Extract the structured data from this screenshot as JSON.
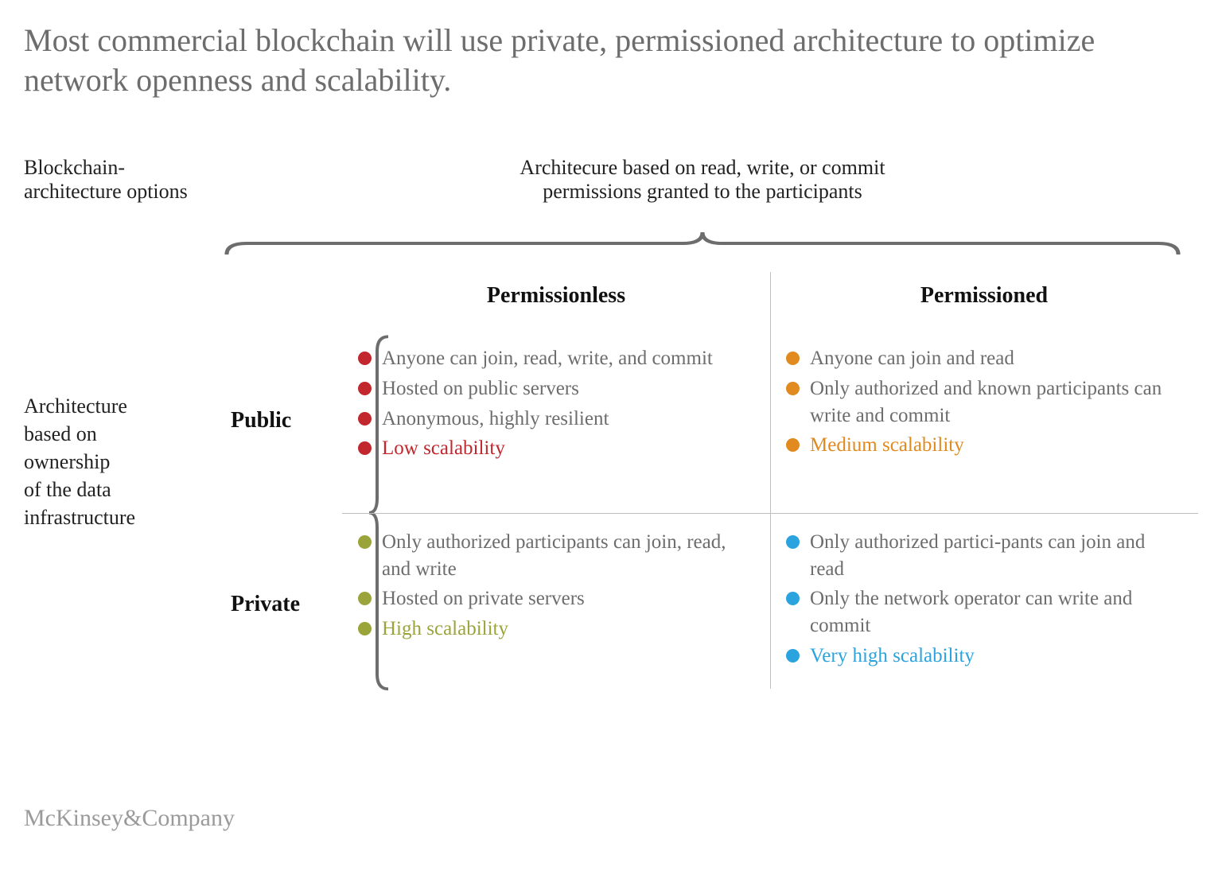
{
  "colors": {
    "title_text": "#6d6d6d",
    "body_text": "#6d6d6d",
    "heading_text": "#111111",
    "divider": "#bfbfbf",
    "brace": "#6d6d6d",
    "background": "#ffffff",
    "red": "#c1272d",
    "orange": "#e08a1f",
    "olive": "#9ba43a",
    "blue": "#2ba3df"
  },
  "typography": {
    "title_fontsize": 40,
    "subtitle_fontsize": 26,
    "colhead_fontsize": 28,
    "bullet_fontsize": 25,
    "attribution_fontsize": 30,
    "font_family": "Georgia, serif"
  },
  "title": "Most commercial blockchain will use private, permissioned architecture to optimize network openness and scalability.",
  "left_subtitle_l1": "Blockchain-",
  "left_subtitle_l2": "architecture options",
  "top_subtitle_l1": "Architecure based on read, write, or commit",
  "top_subtitle_l2": "permissions granted to the participants",
  "left_axis_l1": "Architecture",
  "left_axis_l2": "based on",
  "left_axis_l3": "ownership",
  "left_axis_l4": "of the data",
  "left_axis_l5": "infrastructure",
  "col1": "Permissionless",
  "col2": "Permissioned",
  "row1": "Public",
  "row2": "Private",
  "quadrants": {
    "public_permissionless": {
      "bullet_color": "#c1272d",
      "items": [
        "Anyone can join, read, write, and commit",
        "Hosted on public servers",
        "Anonymous, highly resilient"
      ],
      "scalability_label": "Low scalability",
      "scalability_color": "#c1272d"
    },
    "public_permissioned": {
      "bullet_color": "#e08a1f",
      "items": [
        "Anyone can join and read",
        "Only authorized and known participants can write and commit"
      ],
      "scalability_label": "Medium scalability",
      "scalability_color": "#e08a1f"
    },
    "private_permissionless": {
      "bullet_color": "#9ba43a",
      "items": [
        "Only authorized participants can join, read, and write",
        "Hosted on private servers"
      ],
      "scalability_label": "High scalability",
      "scalability_color": "#9ba43a"
    },
    "private_permissioned": {
      "bullet_color": "#2ba3df",
      "items": [
        "Only authorized partici-pants can join and read",
        "Only the network operator can write and commit"
      ],
      "scalability_label": "Very high scalability",
      "scalability_color": "#2ba3df"
    }
  },
  "attribution": "McKinsey&Company"
}
